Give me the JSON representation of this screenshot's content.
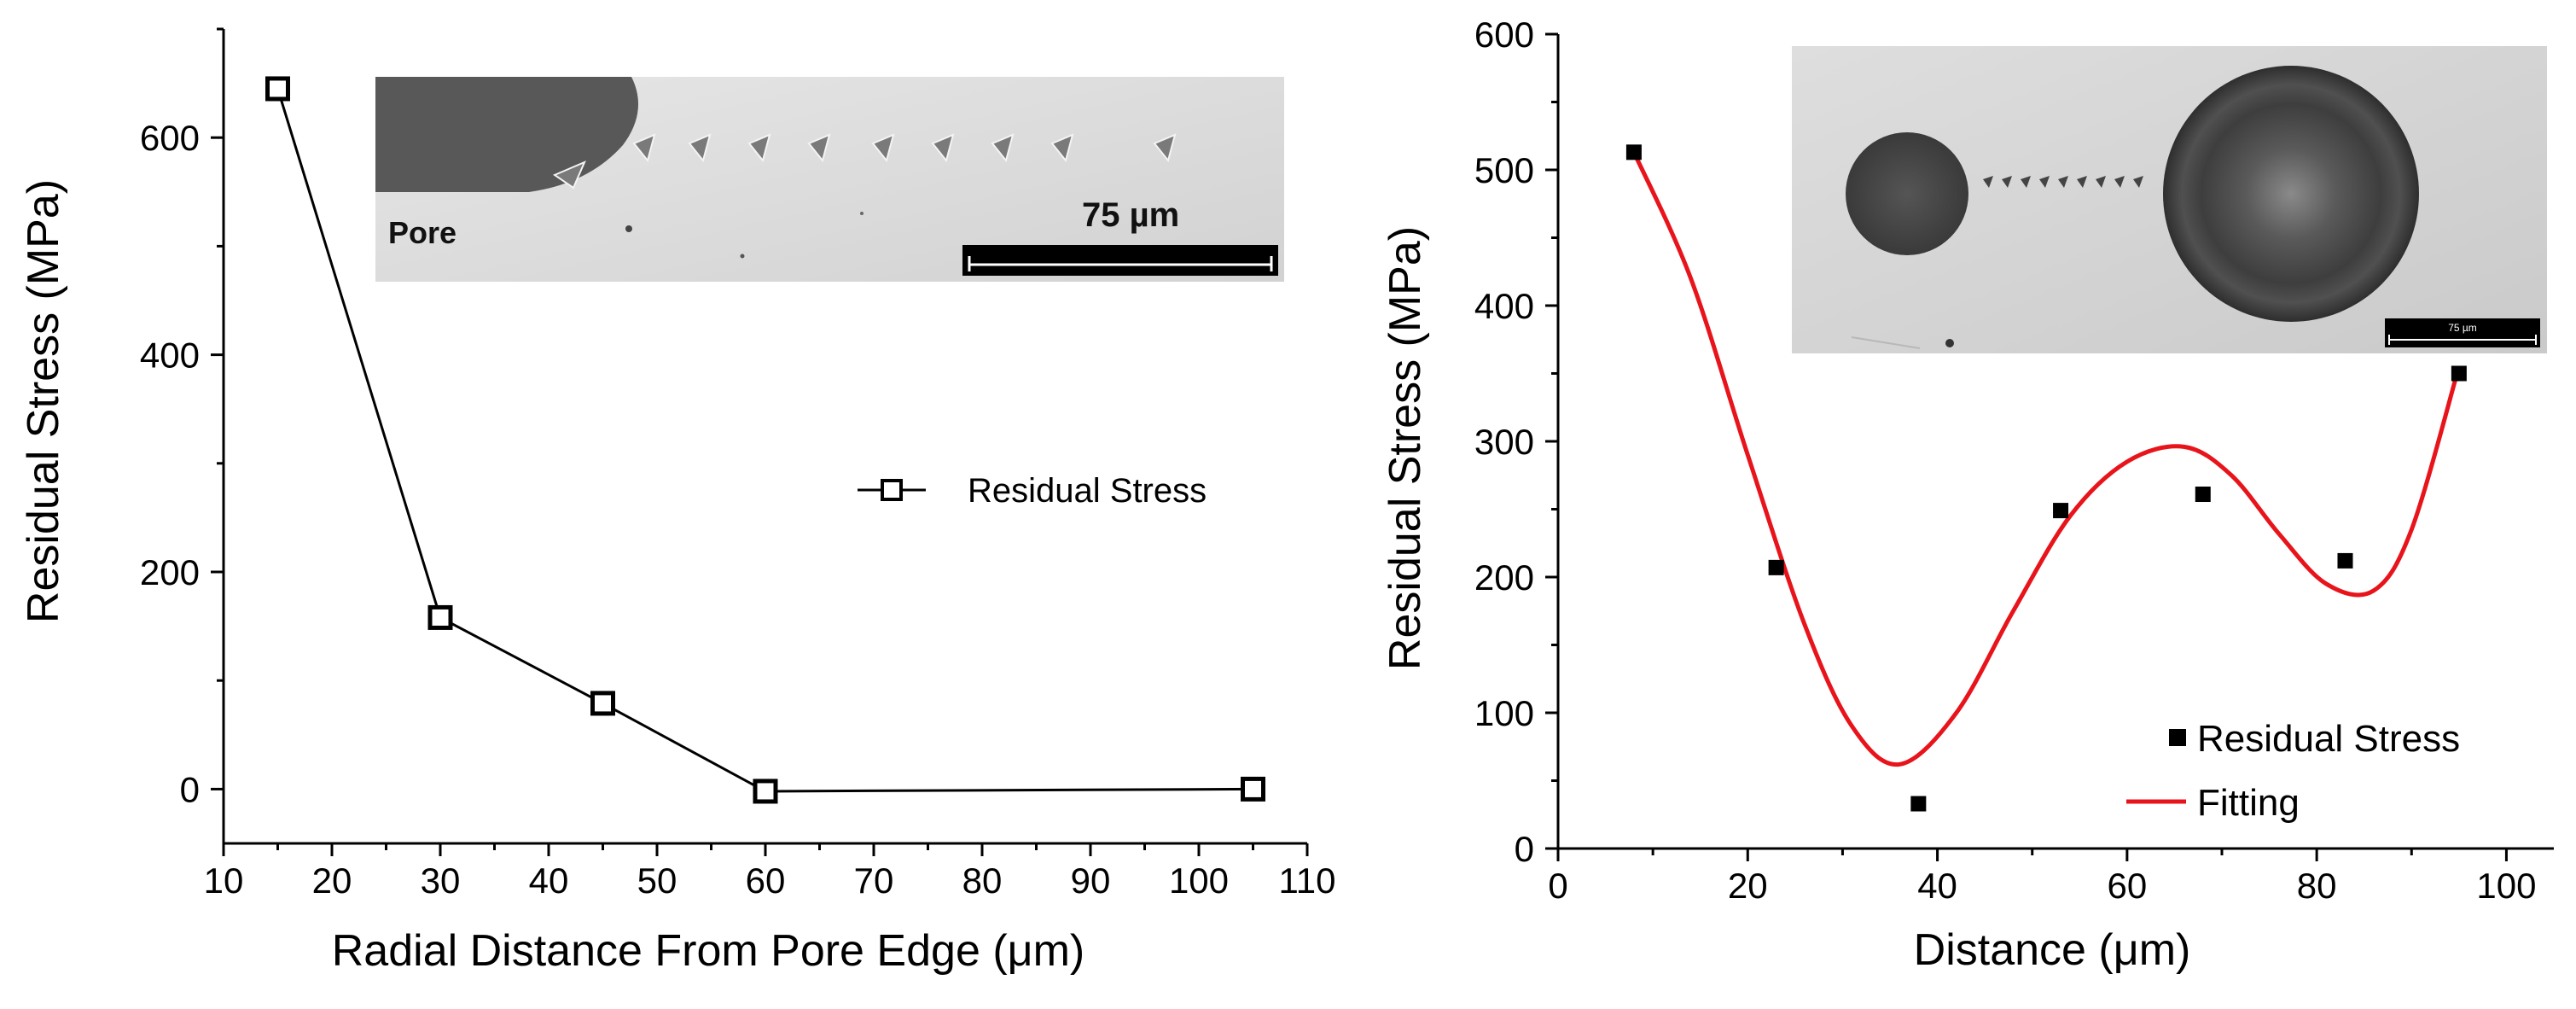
{
  "chart_data": [
    {
      "type": "line",
      "title": "",
      "xlabel": "Radial Distance From Pore Edge (μm)",
      "ylabel": "Residual Stress (MPa)",
      "xlim": [
        10,
        110
      ],
      "ylim": [
        -50,
        700
      ],
      "xticks": [
        10,
        20,
        30,
        40,
        50,
        60,
        70,
        80,
        90,
        100,
        110
      ],
      "yticks": [
        0,
        200,
        400,
        600
      ],
      "grid": false,
      "legend_position": "right",
      "series": [
        {
          "name": "Residual Stress",
          "marker": "open-square",
          "x": [
            15,
            30,
            45,
            60,
            105
          ],
          "y": [
            645,
            158,
            79,
            -2,
            0
          ]
        }
      ],
      "inset": {
        "pore_label": "Pore",
        "scale_label": "75 µm"
      }
    },
    {
      "type": "scatter",
      "title": "",
      "xlabel": "Distance (μm)",
      "ylabel": "Residual Stress (MPa)",
      "xlim": [
        0,
        105
      ],
      "ylim": [
        0,
        600
      ],
      "xticks": [
        0,
        20,
        40,
        60,
        80,
        100
      ],
      "yticks": [
        0,
        100,
        200,
        300,
        400,
        500,
        600
      ],
      "grid": false,
      "legend_position": "bottom-right",
      "series": [
        {
          "name": "Residual Stress",
          "marker": "filled-square",
          "x": [
            8,
            23,
            38,
            53,
            68,
            83,
            95
          ],
          "y": [
            513,
            207,
            33,
            249,
            261,
            212,
            350
          ]
        },
        {
          "name": "Fitting",
          "style": "line",
          "color": "#e8141b",
          "x": [
            8,
            14,
            20,
            26,
            31,
            36,
            42,
            48,
            54,
            60,
            66,
            71,
            76,
            81,
            86,
            90,
            95
          ],
          "y": [
            513,
            420,
            290,
            165,
            90,
            62,
            100,
            175,
            245,
            285,
            296,
            275,
            232,
            195,
            190,
            235,
            355
          ]
        }
      ],
      "inset": {
        "scale_label": "75 µm"
      }
    }
  ]
}
